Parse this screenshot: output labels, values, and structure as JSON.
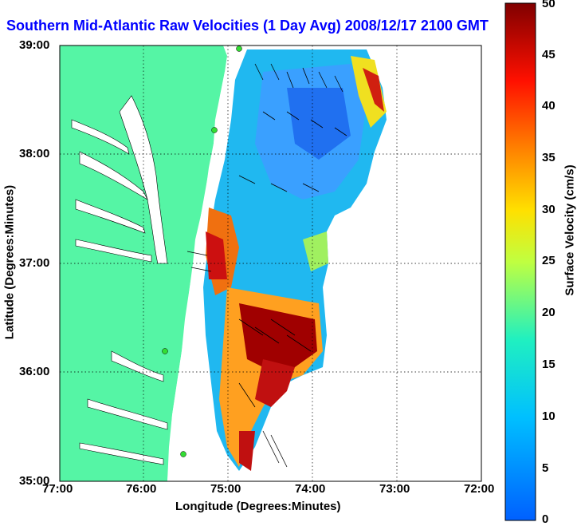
{
  "title": "Southern Mid-Atlantic Raw Velocities (1 Day Avg) 2008/12/17 2100 GMT",
  "xlabel": "Longitude (Degrees:Minutes)",
  "ylabel": "Latitude (Degrees:Minutes)",
  "colorbar": {
    "label": "Surface Velocity (cm/s)",
    "ticks": [
      "0",
      "5",
      "10",
      "15",
      "20",
      "25",
      "30",
      "35",
      "40",
      "45",
      "50"
    ],
    "range": [
      0,
      50
    ]
  },
  "axes": {
    "x_ticks": [
      "77:00",
      "76:00",
      "75:00",
      "74:00",
      "73:00",
      "72:00"
    ],
    "y_ticks": [
      "39:00",
      "38:00",
      "37:00",
      "36:00",
      "35:00"
    ]
  },
  "colors": {
    "land": "#55f5a5",
    "ocean": "#ffffff",
    "title": "#0000ff",
    "station": "#33dd33"
  },
  "stations": [
    {
      "name": "station-1"
    },
    {
      "name": "station-2"
    },
    {
      "name": "station-3"
    },
    {
      "name": "station-4"
    }
  ]
}
